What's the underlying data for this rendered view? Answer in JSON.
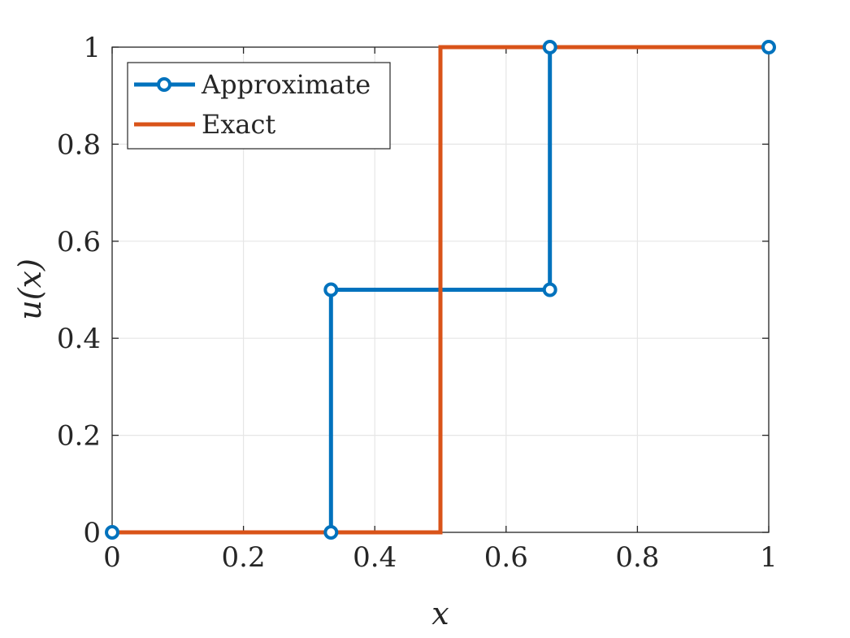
{
  "chart_data": {
    "type": "line",
    "title": "",
    "xlabel": "x",
    "ylabel": "u(x)",
    "xlim": [
      0,
      1
    ],
    "ylim": [
      0,
      1
    ],
    "xticks": [
      0,
      0.2,
      0.4,
      0.6,
      0.8,
      1
    ],
    "xtick_labels": [
      "0",
      "0.2",
      "0.4",
      "0.6",
      "0.8",
      "1"
    ],
    "yticks": [
      0,
      0.2,
      0.4,
      0.6,
      0.8,
      1
    ],
    "ytick_labels": [
      "0",
      "0.2",
      "0.4",
      "0.6",
      "0.8",
      "1"
    ],
    "grid": true,
    "legend_position": "top-left",
    "series": [
      {
        "name": "Approximate",
        "color": "#0072BD",
        "style": "step-with-markers",
        "marker": "circle",
        "x": [
          0,
          0.3333,
          0.3333,
          0.6667,
          0.6667,
          1
        ],
        "y": [
          0,
          0,
          0.5,
          0.5,
          1,
          1
        ],
        "markers_x": [
          0,
          0.3333,
          0.3333,
          0.6667,
          0.6667,
          1
        ],
        "markers_y": [
          0,
          0,
          0.5,
          0.5,
          1,
          1
        ]
      },
      {
        "name": "Exact",
        "color": "#D95319",
        "style": "line",
        "x": [
          0,
          0.5,
          0.5,
          1
        ],
        "y": [
          0,
          0,
          1,
          1
        ]
      }
    ]
  }
}
